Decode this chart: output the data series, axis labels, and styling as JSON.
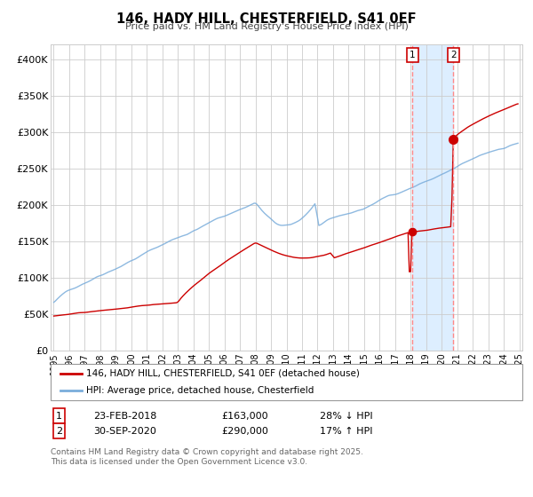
{
  "title": "146, HADY HILL, CHESTERFIELD, S41 0EF",
  "subtitle": "Price paid vs. HM Land Registry's House Price Index (HPI)",
  "legend_line1": "146, HADY HILL, CHESTERFIELD, S41 0EF (detached house)",
  "legend_line2": "HPI: Average price, detached house, Chesterfield",
  "footnote": "Contains HM Land Registry data © Crown copyright and database right 2025.\nThis data is licensed under the Open Government Licence v3.0.",
  "annotation1_label": "1",
  "annotation1_date": "23-FEB-2018",
  "annotation1_price": "£163,000",
  "annotation1_hpi": "28% ↓ HPI",
  "annotation2_label": "2",
  "annotation2_date": "30-SEP-2020",
  "annotation2_price": "£290,000",
  "annotation2_hpi": "17% ↑ HPI",
  "line_color_red": "#cc0000",
  "line_color_blue": "#7aaddb",
  "dot_color": "#cc0000",
  "shade_color": "#ddeeff",
  "dashed_line_color": "#ff8888",
  "grid_color": "#cccccc",
  "background_color": "#ffffff",
  "ylim": [
    0,
    420000
  ],
  "yticks": [
    0,
    50000,
    100000,
    150000,
    200000,
    250000,
    300000,
    350000,
    400000
  ],
  "ytick_labels": [
    "£0",
    "£50K",
    "£100K",
    "£150K",
    "£200K",
    "£250K",
    "£300K",
    "£350K",
    "£400K"
  ],
  "seed": 42,
  "start_year": 1995.0,
  "end_year": 2025.0,
  "transaction1_year": 2018.12,
  "transaction1_value": 163000,
  "transaction2_year": 2020.75,
  "transaction2_value": 290000
}
